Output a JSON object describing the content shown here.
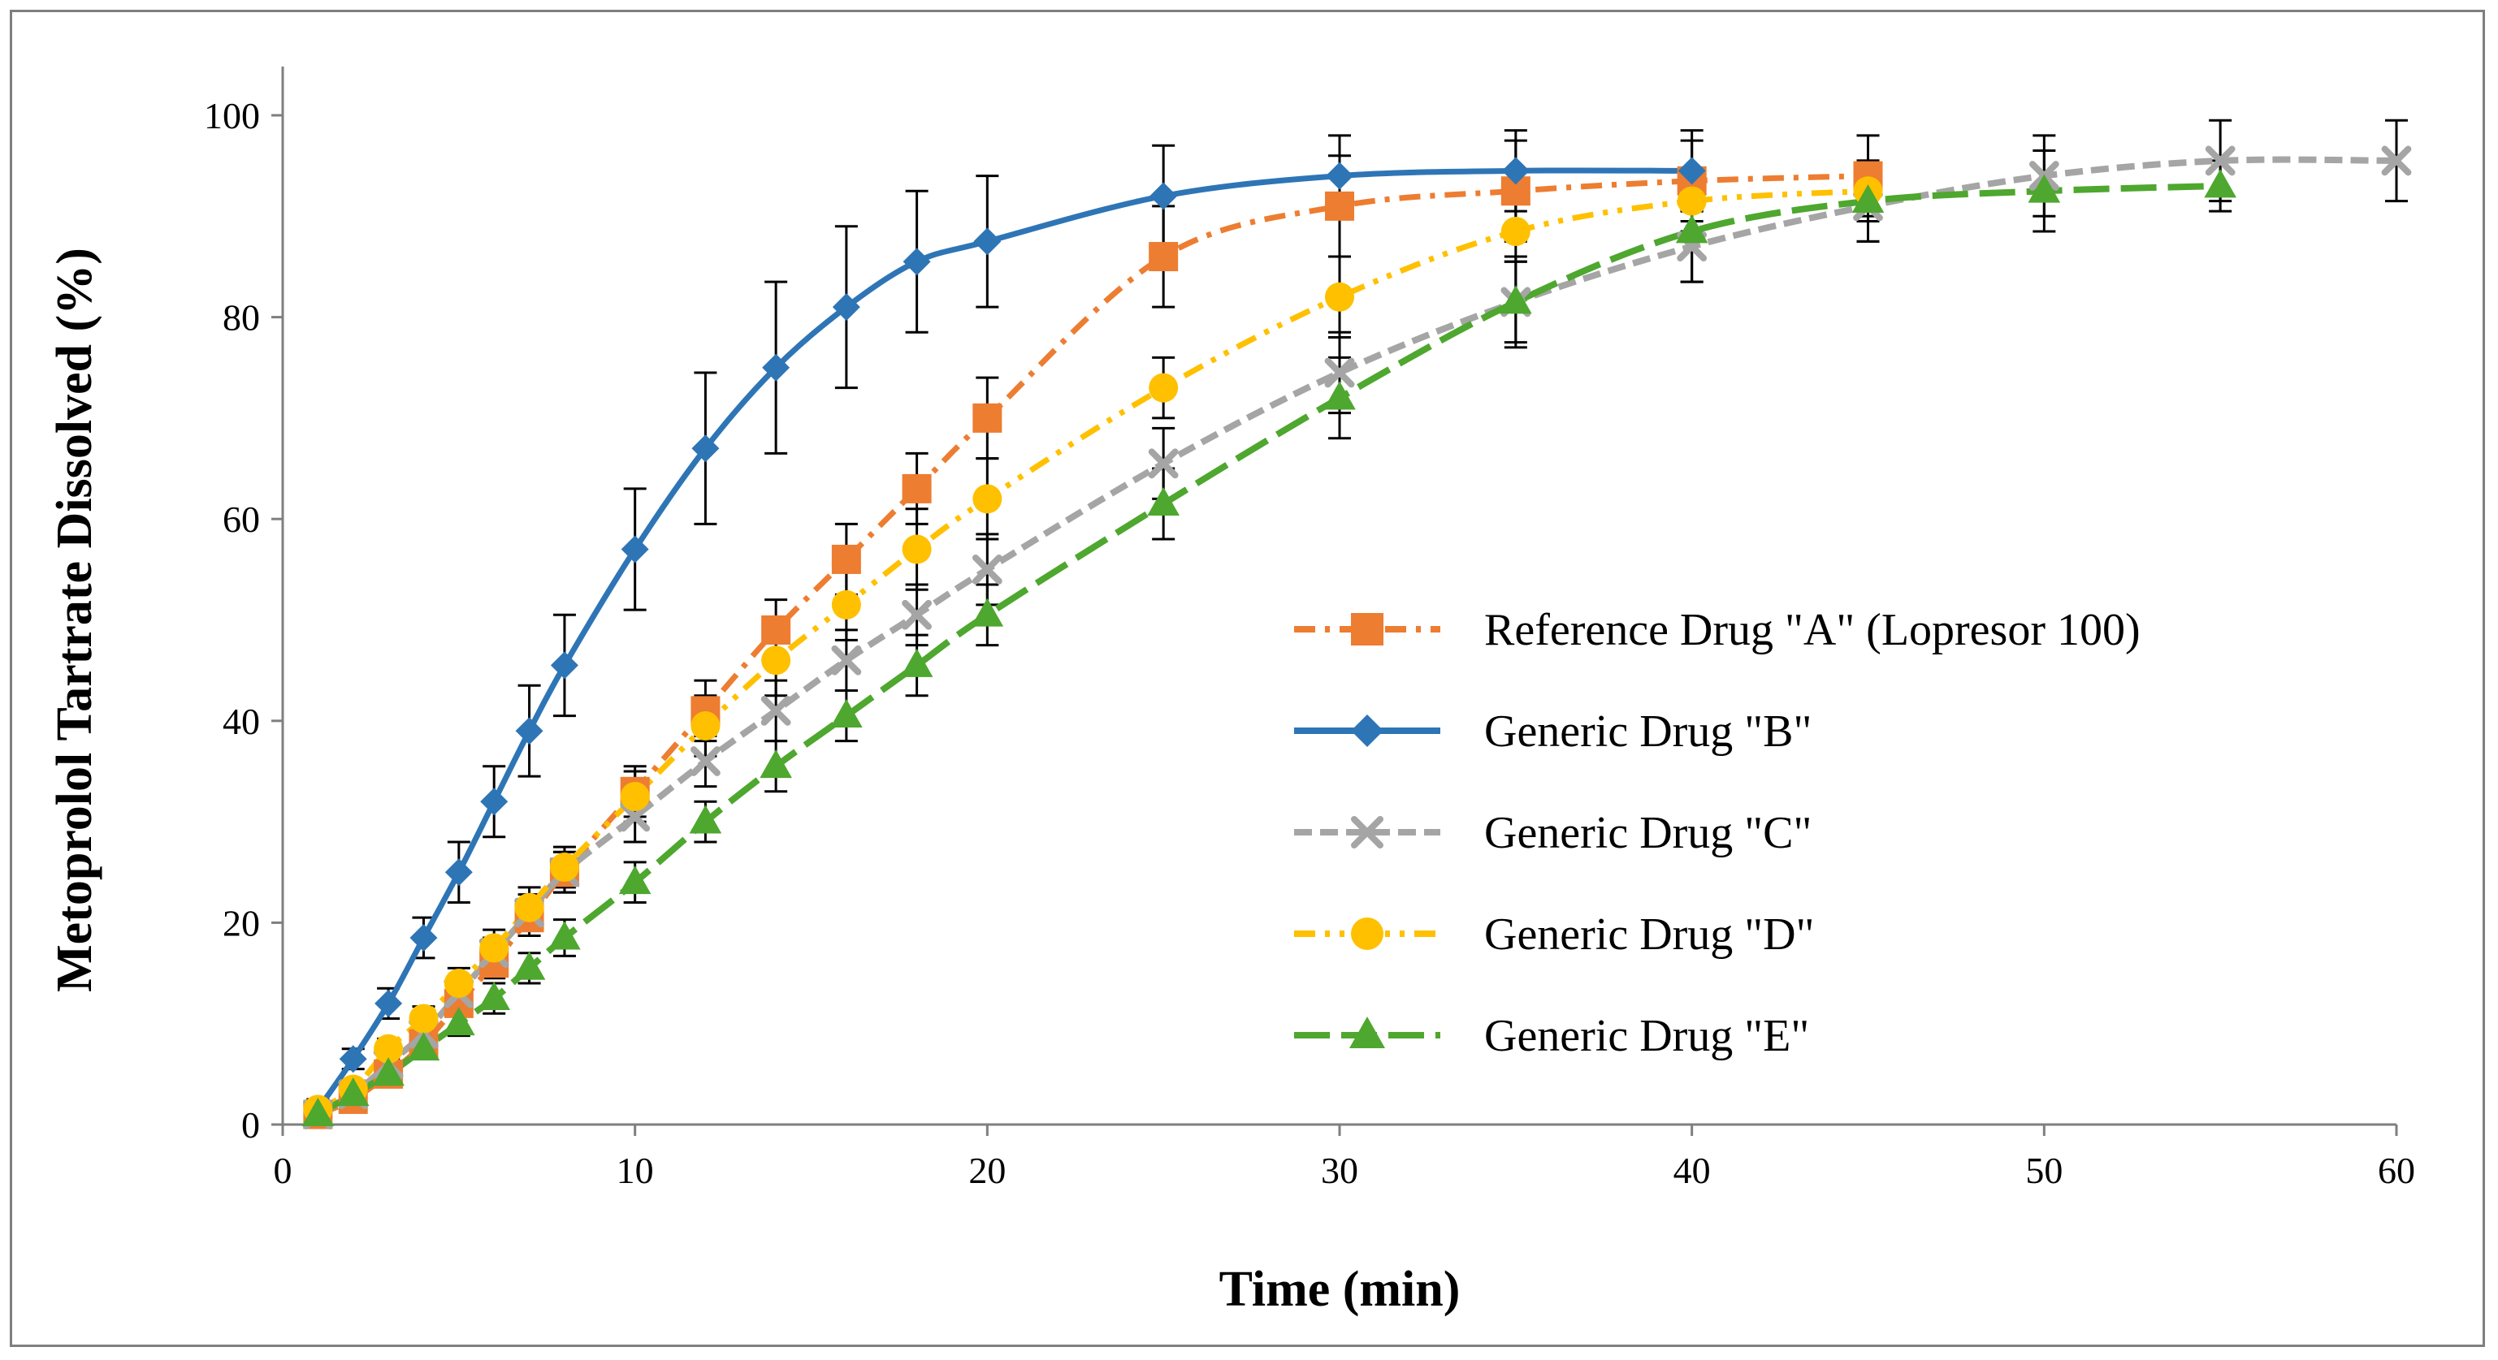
{
  "chart_data": {
    "type": "line",
    "title": "",
    "xlabel": "Time (min)",
    "ylabel": "Metoprolol Tartrate Dissolved (%)",
    "xlim": [
      0,
      60
    ],
    "ylim": [
      0,
      100
    ],
    "xticks": [
      0,
      10,
      20,
      30,
      40,
      50,
      60
    ],
    "yticks": [
      0,
      20,
      40,
      60,
      80,
      100
    ],
    "grid": false,
    "legend_position": "right-middle",
    "series": [
      {
        "name": "Reference Drug \"A\" (Lopresor 100)",
        "color": "#ED7D31",
        "marker": "square",
        "line_style": "dash-dot",
        "x": [
          1,
          2,
          3,
          4,
          5,
          6,
          7,
          8,
          10,
          12,
          14,
          16,
          18,
          20,
          25,
          30,
          35,
          40,
          45
        ],
        "y": [
          1,
          2.5,
          5,
          8,
          12,
          16,
          20.5,
          25,
          33,
          41,
          49,
          56,
          63,
          70,
          86,
          91,
          92.5,
          93.5,
          94
        ],
        "err": [
          0.5,
          0.5,
          0.8,
          1,
          1.2,
          1.5,
          1.8,
          2,
          2.5,
          3,
          3,
          3.5,
          3.5,
          4,
          5,
          5,
          5,
          4,
          4
        ]
      },
      {
        "name": "Generic Drug \"B\"",
        "color": "#2E75B6",
        "marker": "diamond",
        "line_style": "solid",
        "x": [
          1,
          2,
          3,
          4,
          5,
          6,
          7,
          8,
          10,
          12,
          14,
          16,
          18,
          20,
          25,
          30,
          35,
          40
        ],
        "y": [
          1.5,
          6.5,
          12,
          18.5,
          25,
          32,
          39,
          45.5,
          57,
          67,
          75,
          81,
          85.5,
          87.5,
          92,
          94,
          94.5,
          94.5
        ],
        "err": [
          1,
          1,
          1.5,
          2,
          3,
          3.5,
          4.5,
          5,
          6,
          7.5,
          8.5,
          8,
          7,
          6.5,
          5,
          4,
          4,
          4
        ]
      },
      {
        "name": "Generic Drug \"C\"",
        "color": "#A5A5A5",
        "marker": "x",
        "line_style": "dash",
        "x": [
          1,
          2,
          3,
          4,
          5,
          6,
          7,
          8,
          10,
          12,
          14,
          16,
          18,
          20,
          25,
          30,
          35,
          40,
          45,
          50,
          55,
          60
        ],
        "y": [
          1,
          3,
          6,
          9,
          13,
          17,
          21,
          25,
          30.5,
          36,
          41,
          46,
          50.5,
          55,
          65.5,
          74.5,
          81.5,
          87,
          91,
          94,
          95.5,
          95.5
        ],
        "err": [
          0.5,
          0.5,
          1,
          1,
          1.2,
          1.5,
          1.8,
          2,
          2.5,
          2.5,
          3,
          3,
          3,
          3.5,
          3.5,
          4,
          4,
          3.5,
          3.5,
          4,
          4,
          4
        ]
      },
      {
        "name": "Generic Drug \"D\"",
        "color": "#FFC000",
        "marker": "circle",
        "line_style": "dash-dot-dot",
        "x": [
          1,
          2,
          3,
          4,
          5,
          6,
          7,
          8,
          10,
          12,
          14,
          16,
          18,
          20,
          25,
          30,
          35,
          40,
          45
        ],
        "y": [
          1.5,
          3.5,
          7.5,
          10.5,
          14,
          17.5,
          21.5,
          25.5,
          32.5,
          39.5,
          46,
          51.5,
          57,
          62,
          73,
          82,
          88.5,
          91.5,
          92.5
        ],
        "err": [
          0.5,
          0.8,
          1,
          1.2,
          1.5,
          1.8,
          2,
          2,
          2.5,
          3,
          3.5,
          3.5,
          4,
          4,
          3,
          4,
          3,
          3,
          3
        ]
      },
      {
        "name": "Generic Drug \"E\"",
        "color": "#4EA72E",
        "marker": "triangle",
        "line_style": "long-dash",
        "x": [
          1,
          2,
          3,
          4,
          5,
          6,
          7,
          8,
          10,
          12,
          14,
          16,
          18,
          20,
          25,
          30,
          35,
          40,
          45,
          50,
          55
        ],
        "y": [
          1,
          3,
          5,
          7.5,
          10,
          12.5,
          15.5,
          18.5,
          24,
          30,
          35.5,
          40.5,
          45.5,
          50.5,
          61.5,
          72,
          81.5,
          88.5,
          91.5,
          92.5,
          93
        ],
        "err": [
          0.5,
          0.5,
          0.8,
          1,
          1.2,
          1.5,
          1.5,
          1.8,
          2,
          2,
          2.5,
          2.5,
          3,
          3,
          3.5,
          4,
          4.5,
          5,
          4,
          4,
          2.5
        ]
      }
    ]
  }
}
